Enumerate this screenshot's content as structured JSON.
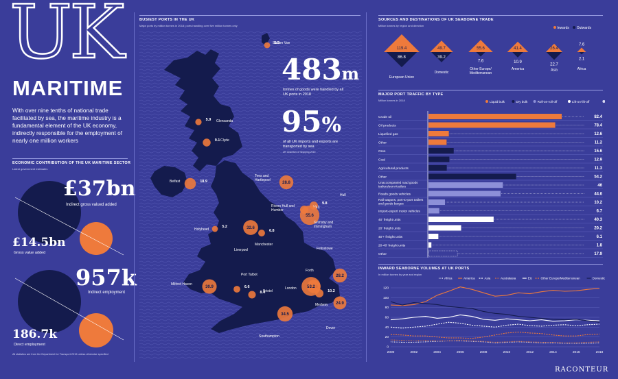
{
  "left": {
    "big_title": "UK",
    "title": "MARITIME",
    "intro": "With over nine tenths of national trade facilitated by sea, the maritime industry is a fundamental element of the UK economy, indirectly responsible for the employment of nearly one million workers",
    "econ_header": "ECONOMIC CONTRIBUTION OF THE UK MARITIME SECTOR",
    "econ_sub": "Latest government estimates",
    "gva_indirect_value": "£37bn",
    "gva_indirect_label": "Indirect gross valued added",
    "gva_value": "£14.5bn",
    "gva_label": "Gross value added",
    "emp_indirect_value": "957k",
    "emp_indirect_label": "Indirect employment",
    "emp_direct_value": "186.7k",
    "emp_direct_label": "Direct employment",
    "footnote": "All statistics are from the Department for Transport 2019 unless otherwise specified"
  },
  "ports": {
    "header": "BUSIEST PORTS IN THE UK",
    "sub": "Major ports by million tonnes in 2018; ports handling over five million tonnes only",
    "stat1_value": "483",
    "stat1_unit": "m",
    "stat1_label": "tonnes of goods were handled by all UK ports in 2018",
    "stat2_value": "95",
    "stat2_unit": "%",
    "stat2_label": "of all UK imports and exports are transported by sea",
    "stat2_source": "UK Chamber of Shipping 2019",
    "list": [
      {
        "name": "Sullom Voe",
        "value": "5.3"
      },
      {
        "name": "Glensanda",
        "value": "5.9"
      },
      {
        "name": "Clyde",
        "value": "9.1"
      },
      {
        "name": "Tees and Hartlepool",
        "value": "28.8"
      },
      {
        "name": "Belfast",
        "value": "18.9"
      },
      {
        "name": "Hull",
        "value": "9.8"
      },
      {
        "name": "Rivers Hull and Humber",
        "value": "10.1"
      },
      {
        "name": "Grimsby and Immingham",
        "value": "55.6"
      },
      {
        "name": "Holyhead",
        "value": "5.2"
      },
      {
        "name": "Liverpool",
        "value": "32.6"
      },
      {
        "name": "Manchester",
        "value": "6.8"
      },
      {
        "name": "Felixstowe",
        "value": "28.2"
      },
      {
        "name": "Forth",
        "value": "26.6"
      },
      {
        "name": "Port Talbot",
        "value": "6.6"
      },
      {
        "name": "Milford Haven",
        "value": "30.9"
      },
      {
        "name": "Bristol",
        "value": "8.4"
      },
      {
        "name": "London",
        "value": "53.2"
      },
      {
        "name": "Medway",
        "value": "10.2"
      },
      {
        "name": "Dover",
        "value": "24.9"
      },
      {
        "name": "Southampton",
        "value": "34.5"
      }
    ]
  },
  "chart_data": [
    {
      "type": "bar",
      "title": "SOURCES AND DESTINATIONS OF UK SEABORNE TRADE",
      "subtitle": "Million tonnes by region and direction",
      "categories": [
        "European Union",
        "Domestic",
        "Other Europe/ Mediterranean",
        "America",
        "Asia",
        "Africa"
      ],
      "series": [
        {
          "name": "Inwards",
          "color": "#ee7a3c",
          "values": [
            119.4,
            49.7,
            55.6,
            41.4,
            26.4,
            7.6
          ]
        },
        {
          "name": "Outwards",
          "color": "#141b4d",
          "values": [
            86.8,
            39.2,
            7.6,
            10.9,
            22.7,
            2.1
          ]
        }
      ]
    },
    {
      "type": "bar",
      "title": "MAJOR PORT TRAFFIC BY TYPE",
      "subtitle": "Million tonnes in 2018",
      "legend": [
        {
          "name": "Liquid bulk",
          "color": "#ee7a3c"
        },
        {
          "name": "Dry bulk",
          "color": "#141b4d"
        },
        {
          "name": "Roll-on-roll-off",
          "color": "#8d90d8"
        },
        {
          "name": "Lift-on-lift-off",
          "color": "#ffffff"
        },
        {
          "name": "Other",
          "color": "#d8d9f2"
        }
      ],
      "xlim": [
        0,
        82.4
      ],
      "rows": [
        {
          "label": "Crude oil",
          "value": 82.4,
          "group": "Liquid bulk"
        },
        {
          "label": "Oil products",
          "value": 78.4,
          "group": "Liquid bulk"
        },
        {
          "label": "Liquefied gas",
          "value": 12.6,
          "group": "Liquid bulk"
        },
        {
          "label": "Other",
          "value": 11.2,
          "group": "Liquid bulk"
        },
        {
          "label": "Ores",
          "value": 15.6,
          "group": "Dry bulk"
        },
        {
          "label": "Coal",
          "value": 12.9,
          "group": "Dry bulk"
        },
        {
          "label": "Agricultural products",
          "value": 11.3,
          "group": "Dry bulk"
        },
        {
          "label": "Other",
          "value": 54.2,
          "group": "Dry bulk"
        },
        {
          "label": "Unaccompanied road goods trailers/semi-trailers",
          "value": 46,
          "group": "Roll-on-roll-off"
        },
        {
          "label": "Roads goods vehicles",
          "value": 44.6,
          "group": "Roll-on-roll-off"
        },
        {
          "label": "Rail wagons, port-to-port trailers and goods barges",
          "value": 10.2,
          "group": "Roll-on-roll-off"
        },
        {
          "label": "Import-export motor vehicles",
          "value": 6.7,
          "group": "Roll-on-roll-off"
        },
        {
          "label": "40' freight units",
          "value": 40.3,
          "group": "Lift-on-lift-off"
        },
        {
          "label": "20' freight units",
          "value": 20.2,
          "group": "Lift-on-lift-off"
        },
        {
          "label": "40'+ freight units",
          "value": 6.1,
          "group": "Lift-on-lift-off"
        },
        {
          "label": "20-40' freight units",
          "value": 1.8,
          "group": "Lift-on-lift-off"
        },
        {
          "label": "Other",
          "value": 17.9,
          "group": "Other"
        }
      ]
    },
    {
      "type": "line",
      "title": "INWARD SEABORNE VOLUMES AT UK PORTS",
      "subtitle": "In million tonnes by year and region",
      "x": [
        2000,
        2001,
        2002,
        2003,
        2004,
        2005,
        2006,
        2007,
        2008,
        2009,
        2010,
        2011,
        2012,
        2013,
        2014,
        2015,
        2016,
        2017,
        2018
      ],
      "xticks": [
        2000,
        2002,
        2004,
        2006,
        2008,
        2010,
        2012,
        2014,
        2016,
        2018
      ],
      "ylim": [
        0,
        120
      ],
      "yticks": [
        0,
        20,
        40,
        60,
        80,
        100,
        120
      ],
      "series": [
        {
          "name": "Africa",
          "color": "#ffffff",
          "dash": "1,1.5",
          "values": [
            10,
            9,
            9,
            10,
            11,
            12,
            12,
            11,
            10,
            8,
            9,
            10,
            9,
            8,
            8,
            7,
            7,
            7,
            8
          ]
        },
        {
          "name": "America",
          "color": "#ee7a3c",
          "dash": "",
          "values": [
            85,
            84,
            86,
            92,
            105,
            113,
            122,
            117,
            110,
            103,
            105,
            110,
            108,
            112,
            115,
            113,
            114,
            117,
            119
          ]
        },
        {
          "name": "Asia",
          "color": "#ffffff",
          "dash": "2,1.5",
          "values": [
            40,
            38,
            40,
            42,
            46,
            50,
            48,
            44,
            42,
            40,
            44,
            46,
            43,
            42,
            44,
            45,
            43,
            45,
            46
          ]
        },
        {
          "name": "Australasia",
          "color": "#ee7a3c",
          "dash": "1,1.5",
          "values": [
            14,
            13,
            12,
            13,
            12,
            12,
            13,
            12,
            11,
            9,
            10,
            11,
            10,
            9,
            9,
            8,
            8,
            9,
            10
          ]
        },
        {
          "name": "EU",
          "color": "#ffffff",
          "dash": "",
          "values": [
            55,
            57,
            60,
            62,
            58,
            60,
            65,
            62,
            56,
            54,
            57,
            55,
            53,
            55,
            52,
            53,
            55,
            54,
            53
          ]
        },
        {
          "name": "Other Europe/Mediterranean",
          "color": "#ee7a3c",
          "dash": "2,1.5",
          "values": [
            25,
            24,
            22,
            22,
            20,
            18,
            18,
            17,
            20,
            24,
            28,
            30,
            28,
            27,
            24,
            22,
            22,
            25,
            26
          ]
        },
        {
          "name": "Domestic",
          "color": "#141b4d",
          "dash": "",
          "values": [
            92,
            85,
            90,
            88,
            86,
            82,
            80,
            78,
            72,
            68,
            66,
            62,
            60,
            58,
            56,
            55,
            56,
            53,
            50
          ]
        }
      ]
    }
  ],
  "brand": "RACONTEUR",
  "colors": {
    "background": "#3a3d9a",
    "accent": "#ee7a3c",
    "navy": "#141b4d"
  }
}
